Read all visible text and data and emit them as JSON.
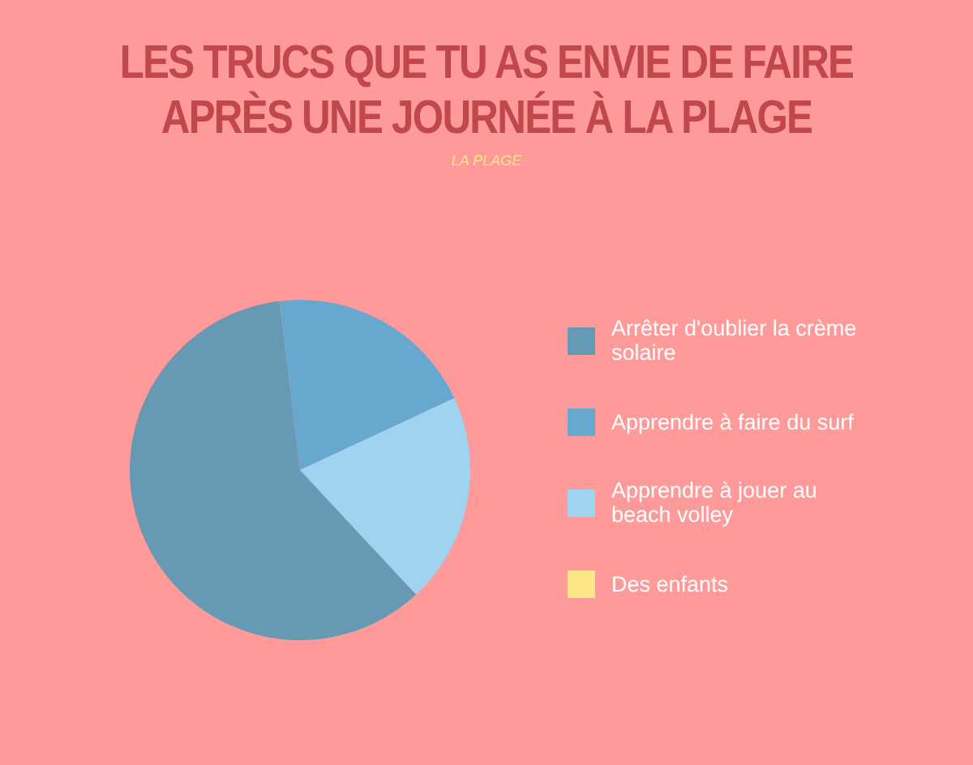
{
  "chart_data": {
    "type": "pie",
    "title": "LES TRUCS QUE TU AS ENVIE DE FAIRE APRÈS UNE JOURNÉE À LA PLAGE",
    "subtitle": "LA PLAGE",
    "categories": [
      "Arrêter d'oublier la crème solaire",
      "Apprendre à faire du surf",
      "Apprendre à jouer au beach volley",
      "Des enfants"
    ],
    "values": [
      60,
      20,
      20,
      0
    ],
    "colors": [
      "#6699b4",
      "#67a8cf",
      "#9fd3ef",
      "#fde68a"
    ],
    "legend": "right"
  }
}
